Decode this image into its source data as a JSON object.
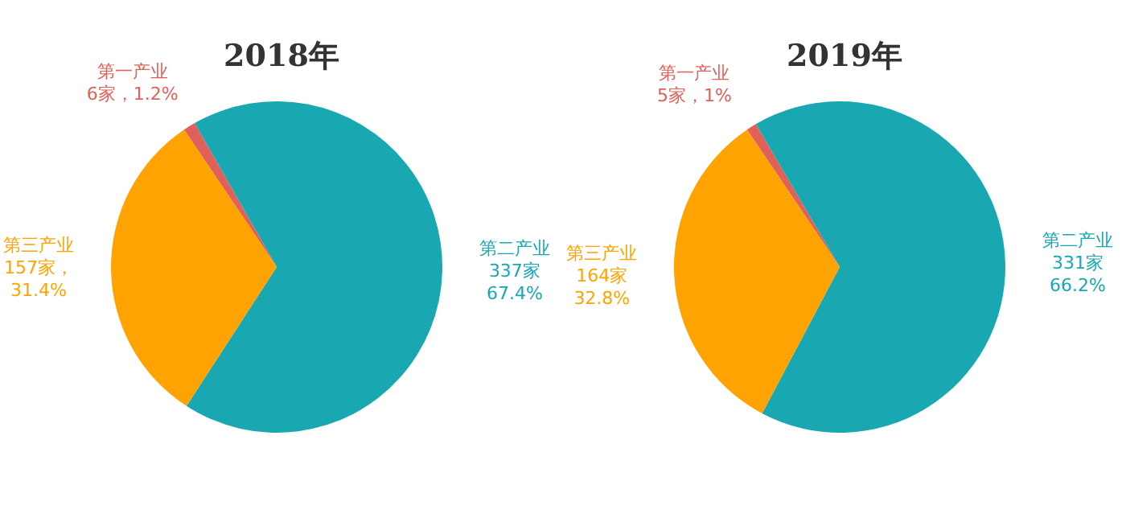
{
  "chart_data": [
    {
      "type": "pie",
      "title": "2018年",
      "categories": [
        "第一产业",
        "第二产业",
        "第三产业"
      ],
      "values": [
        6,
        337,
        157
      ],
      "colors": [
        "#e0605a",
        "#19a7b2",
        "#ffa303"
      ],
      "value_labels": [
        "6家，1.2%",
        "337家 67.4%",
        "157家，31.4%"
      ]
    },
    {
      "type": "pie",
      "title": "2019年",
      "categories": [
        "第一产业",
        "第二产业",
        "第三产业"
      ],
      "values": [
        5,
        331,
        164
      ],
      "colors": [
        "#e0605a",
        "#19a7b2",
        "#ffa303"
      ],
      "value_labels": [
        "5家，1%",
        "331家66.2%",
        "164家 32.8%"
      ]
    }
  ]
}
